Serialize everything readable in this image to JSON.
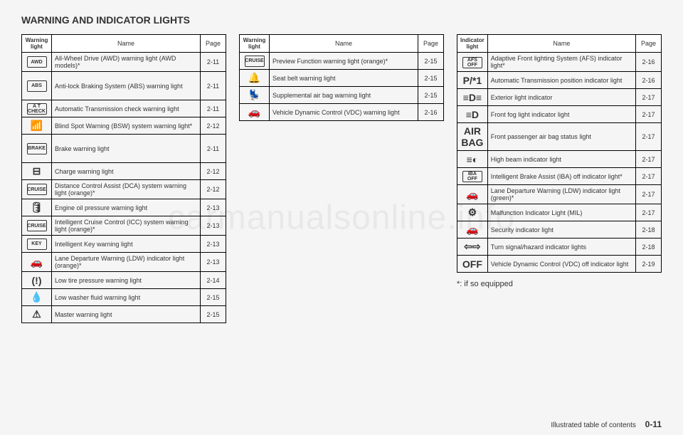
{
  "title": "WARNING AND INDICATOR LIGHTS",
  "watermark": "carmanualsonline.info",
  "footnote": "*: if so equipped",
  "footer_text": "Illustrated table of contents",
  "footer_page": "0-11",
  "table1": {
    "h1": "Warning light",
    "h2": "Name",
    "h3": "Page",
    "rows": [
      {
        "icon": "AWD",
        "name": "All-Wheel Drive (AWD) warning light (AWD models)*",
        "page": "2-11",
        "box": true
      },
      {
        "icon": "ABS",
        "name": "Anti-lock Braking System (ABS) warning light",
        "page": "2-11",
        "box": true,
        "tall": true
      },
      {
        "icon": "A T CHECK",
        "name": "Automatic Transmission check warning light",
        "page": "2-11",
        "box": true
      },
      {
        "icon": "📶",
        "name": "Blind Spot Warning (BSW) system warning light*",
        "page": "2-12"
      },
      {
        "icon": "BRAKE",
        "name": "Brake warning light",
        "page": "2-11",
        "box": true,
        "tall": true
      },
      {
        "icon": "⊟",
        "name": "Charge warning light",
        "page": "2-12"
      },
      {
        "icon": "CRUISE",
        "name": "Distance Control Assist (DCA) system warning light (orange)*",
        "page": "2-12",
        "box": true
      },
      {
        "icon": "🛢",
        "name": "Engine oil pressure warning light",
        "page": "2-13"
      },
      {
        "icon": "CRUISE",
        "name": "Intelligent Cruise Control (ICC) system warning light (orange)*",
        "page": "2-13",
        "box": true
      },
      {
        "icon": "KEY",
        "name": "Intelligent Key warning light",
        "page": "2-13",
        "box": true
      },
      {
        "icon": "🚗",
        "name": "Lane Departure Warning (LDW) indicator light (orange)*",
        "page": "2-13"
      },
      {
        "icon": "(!)",
        "name": "Low tire pressure warning light",
        "page": "2-14"
      },
      {
        "icon": "💧",
        "name": "Low washer fluid warning light",
        "page": "2-15"
      },
      {
        "icon": "⚠",
        "name": "Master warning light",
        "page": "2-15"
      }
    ]
  },
  "table2": {
    "h1": "Warning light",
    "h2": "Name",
    "h3": "Page",
    "rows": [
      {
        "icon": "CRUISE",
        "name": "Preview Function warning light (orange)*",
        "page": "2-15",
        "box": true
      },
      {
        "icon": "🔔",
        "name": "Seat belt warning light",
        "page": "2-15"
      },
      {
        "icon": "💺",
        "name": "Supplemental air bag warning light",
        "page": "2-15"
      },
      {
        "icon": "🚗",
        "name": "Vehicle Dynamic Control (VDC) warning light",
        "page": "2-16"
      }
    ]
  },
  "table3": {
    "h1": "Indicator light",
    "h2": "Name",
    "h3": "Page",
    "rows": [
      {
        "icon": "AFS OFF",
        "name": "Adaptive Front lighting System (AFS) indicator light*",
        "page": "2-16",
        "box": true
      },
      {
        "icon": "P/*1",
        "name": "Automatic Transmission position indicator light",
        "page": "2-16"
      },
      {
        "icon": "≡D≡",
        "name": "Exterior light indicator",
        "page": "2-17"
      },
      {
        "icon": "≡D",
        "name": "Front fog light indicator light",
        "page": "2-17"
      },
      {
        "icon": "AIR BAG",
        "name": "Front passenger air bag status light",
        "page": "2-17"
      },
      {
        "icon": "≡◐",
        "name": "High beam indicator light",
        "page": "2-17"
      },
      {
        "icon": "IBA OFF",
        "name": "Intelligent Brake Assist (IBA) off indicator light*",
        "page": "2-17",
        "box": true
      },
      {
        "icon": "🚗",
        "name": "Lane Departure Warning (LDW) indicator light (green)*",
        "page": "2-17"
      },
      {
        "icon": "⚙",
        "name": "Malfunction Indicator Light (MIL)",
        "page": "2-17"
      },
      {
        "icon": "🚗",
        "name": "Security indicator light",
        "page": "2-18"
      },
      {
        "icon": "⇦⇨",
        "name": "Turn signal/hazard indicator lights",
        "page": "2-18"
      },
      {
        "icon": "OFF",
        "name": "Vehicle Dynamic Control (VDC) off indicator light",
        "page": "2-19"
      }
    ]
  }
}
